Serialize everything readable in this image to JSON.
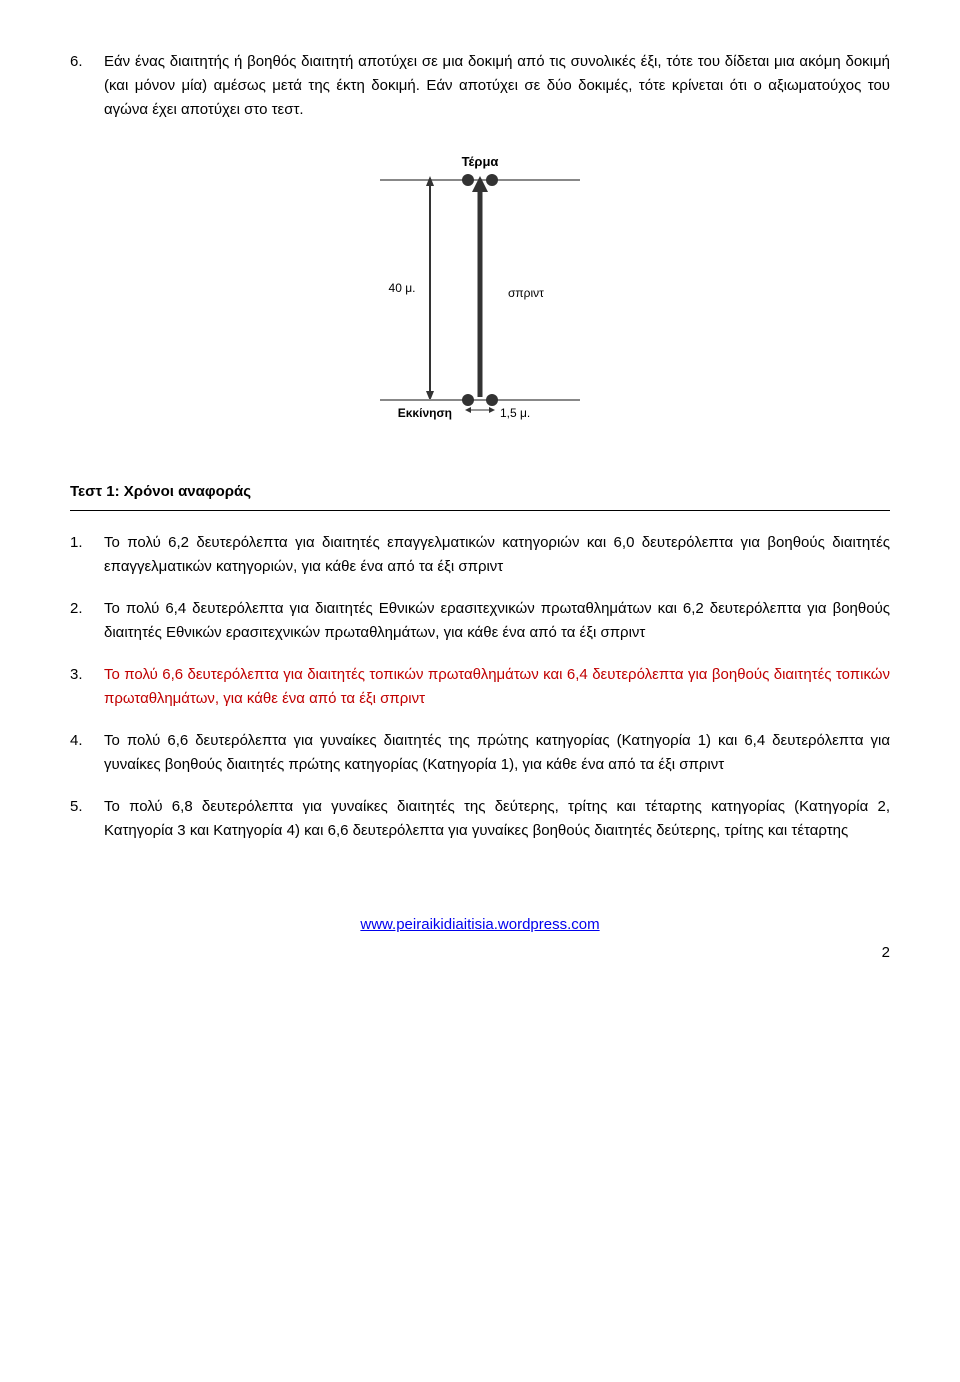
{
  "item6": {
    "num": "6.",
    "text": "Εάν ένας διαιτητής ή βοηθός διαιτητή αποτύχει σε μια δοκιμή από τις συνολικές έξι, τότε του δίδεται μια ακόμη δοκιμή (και μόνον μία) αμέσως μετά της έκτη δοκιμή. Εάν αποτύχει σε δύο δοκιμές, τότε κρίνεται ότι ο αξιωματούχος του αγώνα έχει αποτύχει στο τεστ."
  },
  "diagram": {
    "top_label": "Τέρμα",
    "left_label": "40 μ.",
    "mid_label": "σπριντ",
    "bottom_label": "Εκκίνηση",
    "bottom_dim": "1,5 μ.",
    "fontsize": 12,
    "stroke": "#333333",
    "fill_dot": "#333333",
    "grey": "#888888"
  },
  "section_title": "Τεστ 1: Χρόνοι αναφοράς",
  "list": [
    {
      "text": "Το πολύ 6,2 δευτερόλεπτα για διαιτητές επαγγελματικών κατηγοριών και 6,0 δευτερόλεπτα για βοηθούς διαιτητές επαγγελματικών κατηγοριών, για κάθε ένα από τα έξι σπριντ",
      "red": false
    },
    {
      "text": "Το πολύ 6,4 δευτερόλεπτα για διαιτητές Εθνικών ερασιτεχνικών πρωταθλημάτων και 6,2 δευτερόλεπτα για βοηθούς διαιτητές Εθνικών ερασιτεχνικών πρωταθλημάτων, για κάθε ένα από τα έξι σπριντ",
      "red": false
    },
    {
      "text": "Το πολύ 6,6 δευτερόλεπτα για διαιτητές τοπικών πρωταθλημάτων και 6,4 δευτερόλεπτα για βοηθούς διαιτητές τοπικών πρωταθλημάτων, για κάθε ένα από τα έξι σπριντ",
      "red": true
    },
    {
      "text": "Το πολύ 6,6 δευτερόλεπτα για γυναίκες διαιτητές της πρώτης κατηγορίας (Κατηγορία 1) και 6,4 δευτερόλεπτα για γυναίκες βοηθούς διαιτητές πρώτης κατηγορίας (Κατηγορία 1), για κάθε ένα από τα έξι σπριντ",
      "red": false
    },
    {
      "text": "Το πολύ 6,8 δευτερόλεπτα για γυναίκες διαιτητές της δεύτερης, τρίτης και τέταρτης κατηγορίας (Κατηγορία 2, Κατηγορία 3 και Κατηγορία 4) και 6,6 δευτερόλεπτα για γυναίκες βοηθούς διαιτητές δεύτερης, τρίτης και τέταρτης",
      "red": false
    }
  ],
  "footer_link": "www.peiraikidiaitisia.wordpress.com",
  "page_number": "2"
}
